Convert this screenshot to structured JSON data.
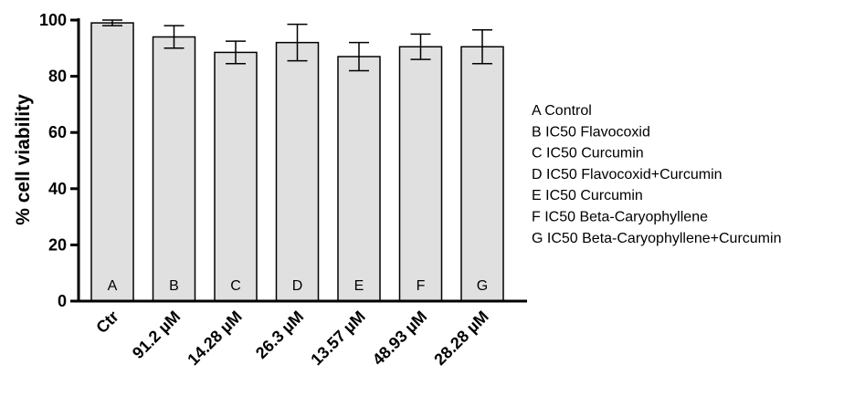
{
  "chart_data": {
    "type": "bar",
    "categories": [
      "Ctr",
      "91.2 µM",
      "14.28 µM",
      "26.3 µM",
      "13.57 µM",
      "48.93 µM",
      "28.28 µM"
    ],
    "bar_letters": [
      "A",
      "B",
      "C",
      "D",
      "E",
      "F",
      "G"
    ],
    "values": [
      99,
      94,
      88.5,
      92,
      87,
      90.5,
      90.5
    ],
    "errors": [
      1,
      4,
      4,
      6.5,
      5,
      4.5,
      6
    ],
    "title": "",
    "xlabel": "",
    "ylabel": "% cell viability",
    "ylim": [
      0,
      100
    ],
    "yticks": [
      0,
      20,
      40,
      60,
      80,
      100
    ],
    "bar_color": "#e0e0e0",
    "grid": false,
    "legend": {
      "placement": "right",
      "entries": [
        "A Control",
        "B IC50 Flavocoxid",
        "C IC50 Curcumin",
        "D IC50 Flavocoxid+Curcumin",
        "E IC50 Curcumin",
        "F IC50 Beta-Caryophyllene",
        "G IC50 Beta-Caryophyllene+Curcumin"
      ]
    }
  }
}
